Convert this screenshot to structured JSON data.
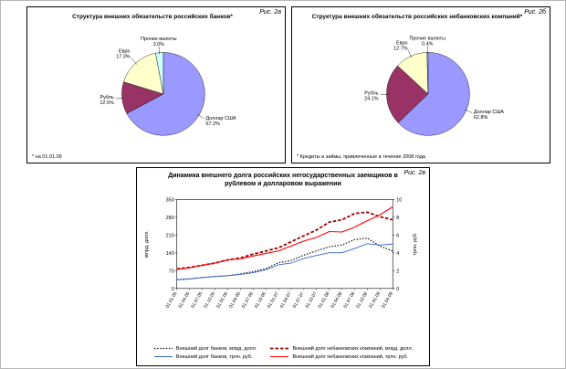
{
  "figure": {
    "background": "#ffffff"
  },
  "chart_data": [
    {
      "id": "banks-liabilities-pie",
      "type": "pie",
      "fig_label": "Рис. 2а",
      "title": "Структура внешних обязательств российских банков*",
      "footnote": "* на 01.01.09",
      "slices": [
        {
          "label": "Доллар США",
          "pct": "67.2%",
          "value": 67.2,
          "color": "#9999FF"
        },
        {
          "label": "Рубль",
          "pct": "12.5%",
          "value": 12.5,
          "color": "#993366"
        },
        {
          "label": "Евро",
          "pct": "17.3%",
          "value": 17.3,
          "color": "#FFFFCC"
        },
        {
          "label": "Прочие валюты",
          "pct": "3.0%",
          "value": 3.0,
          "color": "#CCFFFF"
        }
      ]
    },
    {
      "id": "nonbank-liabilities-pie",
      "type": "pie",
      "fig_label": "Рис. 2б",
      "title": "Структура внешних обязательств российских небанковских компаний*",
      "footnote": "* Кредиты и займы, привлеченные в течение 2008 года",
      "slices": [
        {
          "label": "Доллар США",
          "pct": "62.8%",
          "value": 62.8,
          "color": "#9999FF"
        },
        {
          "label": "Рубль",
          "pct": "24.1%",
          "value": 24.1,
          "color": "#993366"
        },
        {
          "label": "Евро",
          "pct": "12.7%",
          "value": 12.7,
          "color": "#FFFFCC"
        },
        {
          "label": "Прочие валюты",
          "pct": "0.4%",
          "value": 0.4,
          "color": "#CCFFFF"
        }
      ]
    },
    {
      "id": "external-debt-line",
      "type": "line",
      "fig_label": "Рис. 2в",
      "title": "Динамика внешнего долга российских негосударственных заемщиков в рублевом и долларовом выражении",
      "grid": false,
      "legend_position": "bottom",
      "x": [
        "01.01.05",
        "01.04.05",
        "01.07.05",
        "01.10.05",
        "01.01.06",
        "01.04.06",
        "01.07.06",
        "01.10.06",
        "01.01.07",
        "01.04.07",
        "01.07.07",
        "01.10.07",
        "01.01.08",
        "01.04.08",
        "01.07.08",
        "01.10.08",
        "01.01.09",
        "01.04.09"
      ],
      "y_left": {
        "label": "млрд. долл.",
        "min": 0,
        "max": 350,
        "ticks": [
          0,
          70,
          140,
          210,
          280,
          350
        ]
      },
      "y_right": {
        "label": "трлн. руб.",
        "min": 0,
        "max": 10,
        "ticks": [
          0,
          2,
          4,
          6,
          8,
          10
        ]
      },
      "series": [
        {
          "name": "Внешний долг банков, млрд. долл.",
          "axis": "left",
          "style": "dotted",
          "color": "#000000",
          "width": 1.2,
          "values": [
            35,
            38,
            43,
            47,
            50,
            57,
            66,
            78,
            101,
            110,
            131,
            148,
            164,
            171,
            192,
            198,
            166,
            147
          ]
        },
        {
          "name": "Внешний долг небанковских компаний, млрд. долл.",
          "axis": "left",
          "style": "dashed",
          "color": "#990000",
          "width": 1.8,
          "values": [
            77,
            83,
            91,
            100,
            112,
            120,
            135,
            147,
            160,
            184,
            207,
            230,
            261,
            270,
            295,
            300,
            282,
            270
          ]
        },
        {
          "name": "Внешний долг банков, трлн. руб.",
          "axis": "right",
          "style": "solid",
          "color": "#3366CC",
          "width": 0.9,
          "values": [
            0.97,
            1.06,
            1.23,
            1.34,
            1.44,
            1.58,
            1.78,
            2.09,
            2.66,
            2.86,
            3.38,
            3.7,
            4.02,
            4.02,
            4.49,
            5.03,
            4.88,
            5.0
          ]
        },
        {
          "name": "Внешний долг небанковских компаний, трлн. руб.",
          "axis": "right",
          "style": "solid",
          "color": "#FF0000",
          "width": 1.1,
          "values": [
            2.13,
            2.31,
            2.6,
            2.85,
            3.22,
            3.32,
            3.64,
            3.94,
            4.21,
            4.78,
            5.34,
            5.75,
            6.4,
            6.35,
            6.9,
            7.62,
            8.29,
            9.18
          ]
        }
      ]
    }
  ]
}
